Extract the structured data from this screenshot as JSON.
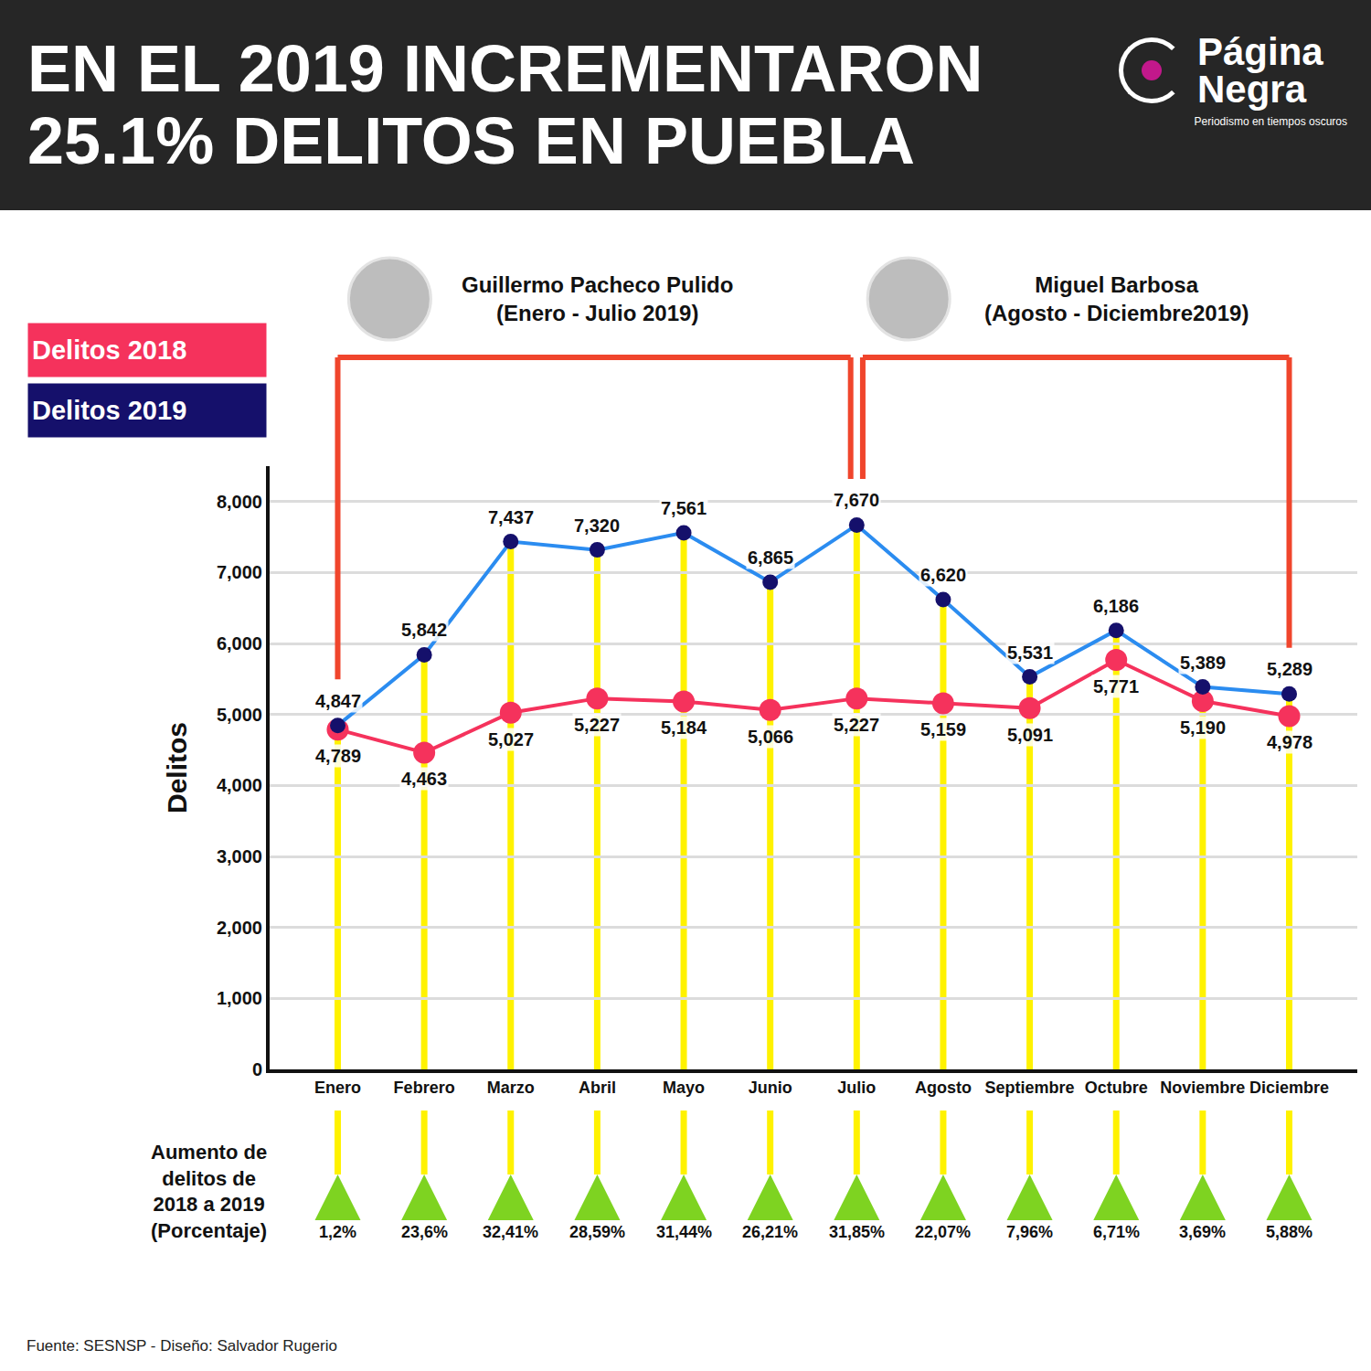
{
  "header": {
    "title": "EN EL 2019 INCREMENTARON 25.1% DELITOS EN PUEBLA",
    "logo": "Página Negra",
    "tagline": "Periodismo en tiempos oscuros"
  },
  "chart_data": {
    "type": "line",
    "categories": [
      "Enero",
      "Febrero",
      "Marzo",
      "Abril",
      "Mayo",
      "Junio",
      "Julio",
      "Agosto",
      "Septiembre",
      "Octubre",
      "Noviembre",
      "Diciembre"
    ],
    "series": [
      {
        "name": "Delitos 2018",
        "color": "#f5325c",
        "marker": "circle",
        "values": [
          4789,
          4463,
          5027,
          5227,
          5184,
          5066,
          5227,
          5159,
          5091,
          5771,
          5190,
          4978
        ],
        "value_labels": [
          "4,789",
          "4,463",
          "5,027",
          "5,227",
          "5,184",
          "5,066",
          "5,227",
          "5,159",
          "5,091",
          "5,771",
          "5,190",
          "4,978"
        ]
      },
      {
        "name": "Delitos 2019",
        "color": "#15106b",
        "marker": "circle",
        "values": [
          4847,
          5842,
          7437,
          7320,
          7561,
          6865,
          7670,
          6620,
          5531,
          6186,
          5389,
          5289
        ],
        "value_labels": [
          "4,847",
          "5,842",
          "7,437",
          "7,320",
          "7,561",
          "6,865",
          "7,670",
          "6,620",
          "5,531",
          "6,186",
          "5,389",
          "5,289"
        ]
      }
    ],
    "y_label": "Delitos",
    "ylim": [
      0,
      8500
    ],
    "yticks": [
      0,
      {
        "value": 1000,
        "label": "1,000"
      },
      {
        "value": 2000,
        "label": "2,000"
      },
      {
        "value": 3000,
        "label": "3,000"
      },
      {
        "value": 4000,
        "label": "4,000"
      },
      {
        "value": 5000,
        "label": "5,000"
      },
      {
        "value": 6000,
        "label": "6,000"
      },
      {
        "value": 7000,
        "label": "7,000"
      },
      {
        "value": 8000,
        "label": "8,000"
      }
    ],
    "grid": true,
    "legend": "top left",
    "data_labels": true,
    "periods": [
      {
        "name": "Guillermo Pacheco Pulido",
        "label": "(Enero - Julio 2019)",
        "from": "Enero",
        "to": "Julio"
      },
      {
        "name": "Miguel Barbosa",
        "label": "(Agosto - Diciembre2019)",
        "from": "Agosto",
        "to": "Diciembre"
      }
    ],
    "increase": {
      "label": "Aumento de delitos de 2018 a 2019 (Porcentaje)",
      "labels": [
        "1,2%",
        "23,6%",
        "32,41%",
        "28,59%",
        "31,44%",
        "26,21%",
        "31,85%",
        "22,07%",
        "7,96%",
        "6,71%",
        "3,69%",
        "5,88%"
      ]
    }
  },
  "footer": "Fuente: SESNSP - Diseño: Salvador Rugerio"
}
